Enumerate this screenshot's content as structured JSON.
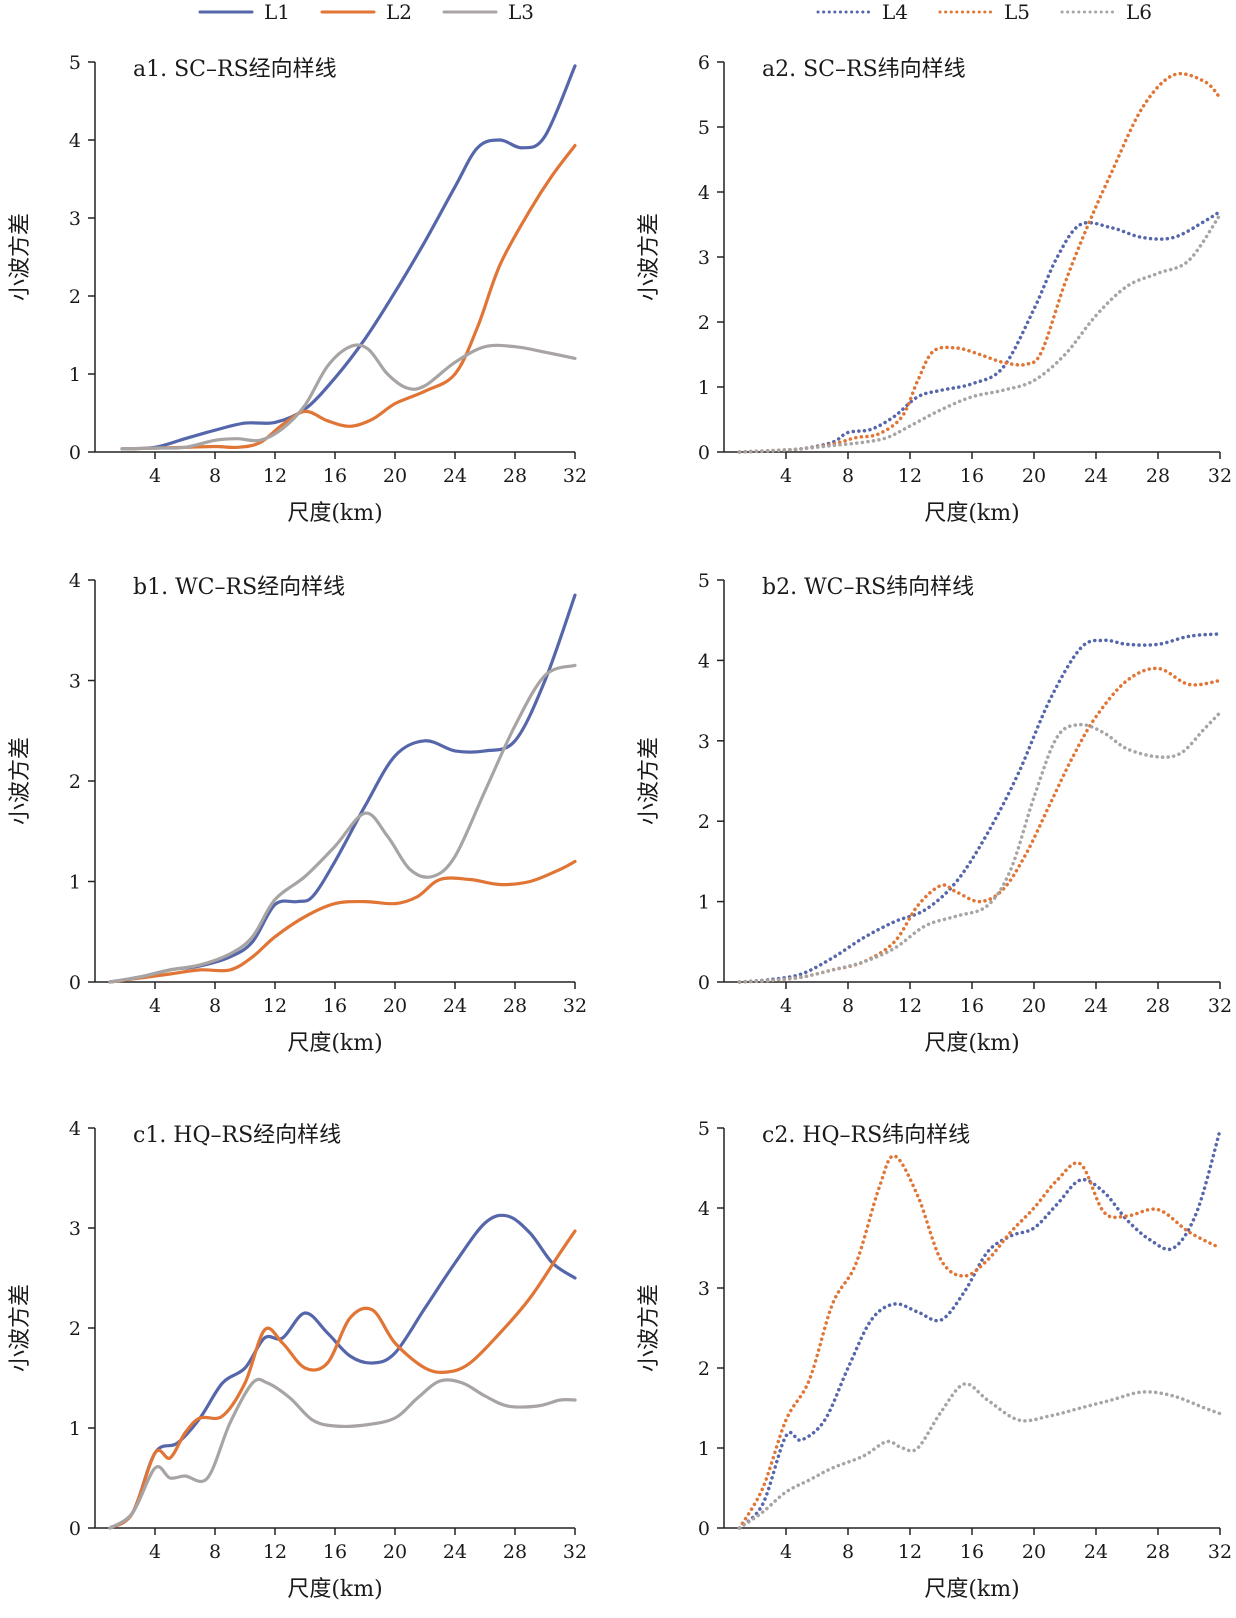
{
  "legend_left": [
    {
      "name": "L1",
      "color": "#5566aa",
      "style": "solid"
    },
    {
      "name": "L2",
      "color": "#e07535",
      "style": "solid"
    },
    {
      "name": "L3",
      "color": "#a8a4a4",
      "style": "solid"
    }
  ],
  "legend_right": [
    {
      "name": "L4",
      "color": "#5566aa",
      "style": "dotted"
    },
    {
      "name": "L5",
      "color": "#e07535",
      "style": "dotted"
    },
    {
      "name": "L6",
      "color": "#a8a4a4",
      "style": "dotted"
    }
  ],
  "chart_data": [
    {
      "type": "line",
      "title": "a1. SC–RS经向样线",
      "xlabel": "尺度(km)",
      "ylabel": "小波方差",
      "xticks": [
        4,
        8,
        12,
        16,
        20,
        24,
        28,
        32
      ],
      "xlim": [
        0,
        32
      ],
      "yticks": [
        0,
        1,
        2,
        3,
        4,
        5
      ],
      "ylim": [
        0,
        5
      ],
      "series": [
        {
          "name": "L1",
          "color": "#5566aa",
          "style": "solid",
          "x": [
            1.8,
            4,
            6,
            8,
            10,
            12,
            14,
            16,
            18,
            20,
            22,
            24,
            25.5,
            27,
            28.5,
            30,
            32
          ],
          "y": [
            0.04,
            0.06,
            0.17,
            0.28,
            0.37,
            0.38,
            0.55,
            0.95,
            1.45,
            2.05,
            2.7,
            3.4,
            3.9,
            4.0,
            3.9,
            4.05,
            4.95
          ]
        },
        {
          "name": "L2",
          "color": "#e07535",
          "style": "solid",
          "x": [
            1.8,
            4,
            6,
            8,
            9.5,
            11,
            12.5,
            14,
            15.5,
            17,
            18.5,
            20,
            22,
            24,
            25.5,
            27,
            29,
            30.5,
            32
          ],
          "y": [
            0.04,
            0.05,
            0.06,
            0.07,
            0.06,
            0.12,
            0.35,
            0.52,
            0.4,
            0.33,
            0.42,
            0.62,
            0.78,
            1.0,
            1.6,
            2.4,
            3.1,
            3.55,
            3.93
          ]
        },
        {
          "name": "L3",
          "color": "#a8a4a4",
          "style": "solid",
          "x": [
            1.8,
            4,
            6,
            8,
            9.5,
            11,
            12.5,
            14,
            15.5,
            17,
            18.2,
            19.5,
            20.8,
            22,
            24,
            26,
            28,
            30,
            32
          ],
          "y": [
            0.04,
            0.05,
            0.06,
            0.15,
            0.17,
            0.15,
            0.3,
            0.6,
            1.1,
            1.35,
            1.32,
            1.0,
            0.82,
            0.85,
            1.15,
            1.35,
            1.35,
            1.28,
            1.2
          ]
        }
      ]
    },
    {
      "type": "line",
      "title": "a2. SC–RS纬向样线",
      "xlabel": "尺度(km)",
      "ylabel": "小波方差",
      "xticks": [
        4,
        8,
        12,
        16,
        20,
        24,
        28,
        32
      ],
      "xlim": [
        0,
        32
      ],
      "yticks": [
        0,
        1,
        2,
        3,
        4,
        5,
        6
      ],
      "ylim": [
        0,
        6
      ],
      "series": [
        {
          "name": "L4",
          "color": "#5566aa",
          "style": "dotted",
          "x": [
            1,
            3,
            5,
            7,
            8,
            9.5,
            11,
            12.5,
            14,
            16,
            18,
            20,
            21.5,
            23,
            25,
            27,
            29,
            31,
            32
          ],
          "y": [
            0.0,
            0.02,
            0.05,
            0.15,
            0.3,
            0.35,
            0.55,
            0.85,
            0.95,
            1.05,
            1.3,
            2.2,
            3.0,
            3.5,
            3.45,
            3.3,
            3.3,
            3.55,
            3.7
          ]
        },
        {
          "name": "L5",
          "color": "#e07535",
          "style": "dotted",
          "x": [
            1,
            3,
            5,
            7,
            8.5,
            10,
            11.5,
            12.5,
            13.5,
            15,
            16.5,
            18,
            19.5,
            20.5,
            22,
            23.5,
            25,
            27,
            29,
            31,
            32
          ],
          "y": [
            0.0,
            0.02,
            0.05,
            0.12,
            0.22,
            0.28,
            0.55,
            1.1,
            1.55,
            1.6,
            1.5,
            1.38,
            1.35,
            1.55,
            2.6,
            3.5,
            4.3,
            5.3,
            5.8,
            5.7,
            5.45
          ]
        },
        {
          "name": "L6",
          "color": "#a8a4a4",
          "style": "dotted",
          "x": [
            1,
            3,
            5,
            7,
            9,
            10.5,
            12,
            14,
            16,
            18,
            20,
            22,
            24,
            26,
            28,
            30,
            32
          ],
          "y": [
            0.0,
            0.02,
            0.05,
            0.1,
            0.15,
            0.22,
            0.4,
            0.65,
            0.85,
            0.95,
            1.1,
            1.5,
            2.1,
            2.55,
            2.75,
            2.95,
            3.65
          ]
        }
      ]
    },
    {
      "type": "line",
      "title": "b1. WC–RS经向样线",
      "xlabel": "尺度(km)",
      "ylabel": "小波方差",
      "xticks": [
        4,
        8,
        12,
        16,
        20,
        24,
        28,
        32
      ],
      "xlim": [
        0,
        32
      ],
      "yticks": [
        0,
        1,
        2,
        3,
        4
      ],
      "ylim": [
        0,
        4
      ],
      "series": [
        {
          "name": "L1",
          "color": "#5566aa",
          "style": "solid",
          "x": [
            1,
            3,
            5,
            7,
            9,
            10.5,
            12,
            13.5,
            14.5,
            16,
            18,
            20,
            22,
            24,
            26,
            28,
            30,
            32
          ],
          "y": [
            0.0,
            0.05,
            0.12,
            0.16,
            0.25,
            0.4,
            0.77,
            0.8,
            0.85,
            1.2,
            1.75,
            2.25,
            2.4,
            2.3,
            2.3,
            2.4,
            3.0,
            3.85
          ]
        },
        {
          "name": "L2",
          "color": "#e07535",
          "style": "solid",
          "x": [
            1,
            3,
            5,
            7,
            9,
            10.5,
            12,
            14,
            16,
            18,
            20,
            21.5,
            23,
            25,
            27,
            29,
            31,
            32
          ],
          "y": [
            0.0,
            0.04,
            0.08,
            0.12,
            0.12,
            0.25,
            0.45,
            0.65,
            0.78,
            0.8,
            0.78,
            0.85,
            1.02,
            1.02,
            0.97,
            1.0,
            1.12,
            1.2
          ]
        },
        {
          "name": "L3",
          "color": "#a8a4a4",
          "style": "solid",
          "x": [
            1,
            3,
            5,
            7,
            9,
            10.5,
            12,
            14,
            16,
            18,
            19.5,
            21,
            22.5,
            24,
            26,
            28,
            30,
            32
          ],
          "y": [
            0.0,
            0.05,
            0.12,
            0.17,
            0.28,
            0.45,
            0.82,
            1.05,
            1.35,
            1.68,
            1.45,
            1.12,
            1.05,
            1.25,
            1.9,
            2.55,
            3.05,
            3.15
          ]
        }
      ]
    },
    {
      "type": "line",
      "title": "b2. WC–RS纬向样线",
      "xlabel": "尺度(km)",
      "ylabel": "小波方差",
      "xticks": [
        4,
        8,
        12,
        16,
        20,
        24,
        28,
        32
      ],
      "xlim": [
        0,
        32
      ],
      "yticks": [
        0,
        1,
        2,
        3,
        4,
        5
      ],
      "ylim": [
        0,
        5
      ],
      "series": [
        {
          "name": "L4",
          "color": "#5566aa",
          "style": "dotted",
          "x": [
            1,
            3,
            5,
            7,
            9,
            11,
            13,
            15,
            17,
            19,
            21,
            23,
            24.5,
            26,
            28,
            30,
            32
          ],
          "y": [
            0.0,
            0.03,
            0.1,
            0.3,
            0.55,
            0.75,
            0.9,
            1.25,
            1.85,
            2.6,
            3.5,
            4.15,
            4.25,
            4.2,
            4.2,
            4.3,
            4.33
          ]
        },
        {
          "name": "L5",
          "color": "#e07535",
          "style": "dotted",
          "x": [
            1,
            3,
            5,
            7,
            9,
            11,
            12.5,
            14,
            15,
            16.5,
            18,
            19.5,
            21,
            22.5,
            24,
            26,
            28,
            30,
            32
          ],
          "y": [
            0.0,
            0.02,
            0.06,
            0.15,
            0.25,
            0.5,
            0.95,
            1.2,
            1.12,
            1.0,
            1.15,
            1.6,
            2.2,
            2.8,
            3.3,
            3.75,
            3.9,
            3.7,
            3.75
          ]
        },
        {
          "name": "L6",
          "color": "#a8a4a4",
          "style": "dotted",
          "x": [
            1,
            3,
            5,
            7,
            9,
            11,
            13,
            15,
            17,
            18.5,
            20,
            21.5,
            23,
            24.5,
            26,
            28,
            29.5,
            31,
            32
          ],
          "y": [
            0.0,
            0.02,
            0.06,
            0.15,
            0.25,
            0.42,
            0.7,
            0.82,
            0.95,
            1.4,
            2.3,
            3.05,
            3.2,
            3.1,
            2.9,
            2.8,
            2.85,
            3.15,
            3.35
          ]
        }
      ]
    },
    {
      "type": "line",
      "title": "c1. HQ–RS经向样线",
      "xlabel": "尺度(km)",
      "ylabel": "小波方差",
      "xticks": [
        4,
        8,
        12,
        16,
        20,
        24,
        28,
        32
      ],
      "xlim": [
        0,
        32
      ],
      "yticks": [
        0,
        1,
        2,
        3,
        4
      ],
      "ylim": [
        0,
        4
      ],
      "series": [
        {
          "name": "L1",
          "color": "#5566aa",
          "style": "solid",
          "x": [
            1,
            2.5,
            4,
            5.5,
            7,
            8.5,
            10,
            11.3,
            12.5,
            14,
            15.5,
            17,
            18.5,
            20,
            22,
            24,
            26,
            27.5,
            29,
            30.5,
            32
          ],
          "y": [
            0.0,
            0.15,
            0.75,
            0.85,
            1.1,
            1.45,
            1.6,
            1.9,
            1.9,
            2.15,
            1.95,
            1.72,
            1.65,
            1.75,
            2.2,
            2.65,
            3.05,
            3.12,
            2.95,
            2.65,
            2.5
          ]
        },
        {
          "name": "L2",
          "color": "#e07535",
          "style": "solid",
          "x": [
            1,
            2.5,
            4,
            5,
            6,
            7,
            8.5,
            10,
            11.3,
            12.5,
            14,
            15.5,
            17,
            18.5,
            20,
            22,
            23.5,
            25,
            27,
            29,
            31,
            32
          ],
          "y": [
            0.0,
            0.15,
            0.75,
            0.7,
            0.95,
            1.1,
            1.12,
            1.45,
            1.98,
            1.85,
            1.6,
            1.65,
            2.1,
            2.18,
            1.85,
            1.6,
            1.56,
            1.65,
            1.95,
            2.3,
            2.75,
            2.97
          ]
        },
        {
          "name": "L3",
          "color": "#a8a4a4",
          "style": "solid",
          "x": [
            1,
            2.5,
            4,
            5,
            6,
            7.5,
            9,
            10.5,
            11.5,
            13,
            14.5,
            16,
            18,
            20,
            21.5,
            23,
            24.5,
            26,
            27.5,
            29.5,
            31,
            32
          ],
          "y": [
            0.0,
            0.15,
            0.6,
            0.5,
            0.52,
            0.5,
            1.05,
            1.45,
            1.45,
            1.3,
            1.08,
            1.02,
            1.03,
            1.1,
            1.3,
            1.47,
            1.45,
            1.32,
            1.22,
            1.22,
            1.28,
            1.28
          ]
        }
      ]
    },
    {
      "type": "line",
      "title": "c2. HQ–RS纬向样线",
      "xlabel": "尺度(km)",
      "ylabel": "小波方差",
      "xticks": [
        4,
        8,
        12,
        16,
        20,
        24,
        28,
        32
      ],
      "xlim": [
        0,
        32
      ],
      "yticks": [
        0,
        1,
        2,
        3,
        4,
        5
      ],
      "ylim": [
        0,
        5
      ],
      "series": [
        {
          "name": "L4",
          "color": "#5566aa",
          "style": "dotted",
          "x": [
            1,
            2.5,
            4,
            5,
            6.5,
            8,
            9.5,
            11,
            12.5,
            14,
            15.5,
            17,
            18.5,
            20,
            21.5,
            23,
            24.5,
            26,
            27.5,
            29,
            30.5,
            32
          ],
          "y": [
            0.0,
            0.3,
            1.15,
            1.1,
            1.35,
            2.0,
            2.6,
            2.8,
            2.7,
            2.6,
            2.95,
            3.45,
            3.65,
            3.75,
            4.05,
            4.35,
            4.2,
            3.85,
            3.6,
            3.5,
            3.95,
            4.97
          ]
        },
        {
          "name": "L5",
          "color": "#e07535",
          "style": "dotted",
          "x": [
            1,
            2.5,
            4,
            5.5,
            7,
            8.5,
            10,
            11,
            12.5,
            14,
            15.5,
            17,
            18.5,
            20,
            21.5,
            23,
            24.5,
            26,
            28,
            30,
            32
          ],
          "y": [
            0.0,
            0.5,
            1.35,
            1.85,
            2.8,
            3.3,
            4.25,
            4.65,
            4.15,
            3.35,
            3.15,
            3.35,
            3.7,
            4.0,
            4.35,
            4.55,
            3.95,
            3.9,
            3.98,
            3.7,
            3.5
          ]
        },
        {
          "name": "L6",
          "color": "#a8a4a4",
          "style": "dotted",
          "x": [
            1,
            2.5,
            4,
            5.5,
            7,
            9,
            10.5,
            11.5,
            12.5,
            14,
            15.5,
            17,
            19,
            21,
            23,
            25,
            27,
            29,
            31,
            32
          ],
          "y": [
            0.0,
            0.2,
            0.45,
            0.6,
            0.75,
            0.9,
            1.08,
            1.0,
            1.0,
            1.45,
            1.8,
            1.6,
            1.35,
            1.4,
            1.5,
            1.6,
            1.7,
            1.65,
            1.5,
            1.43
          ]
        }
      ]
    }
  ]
}
